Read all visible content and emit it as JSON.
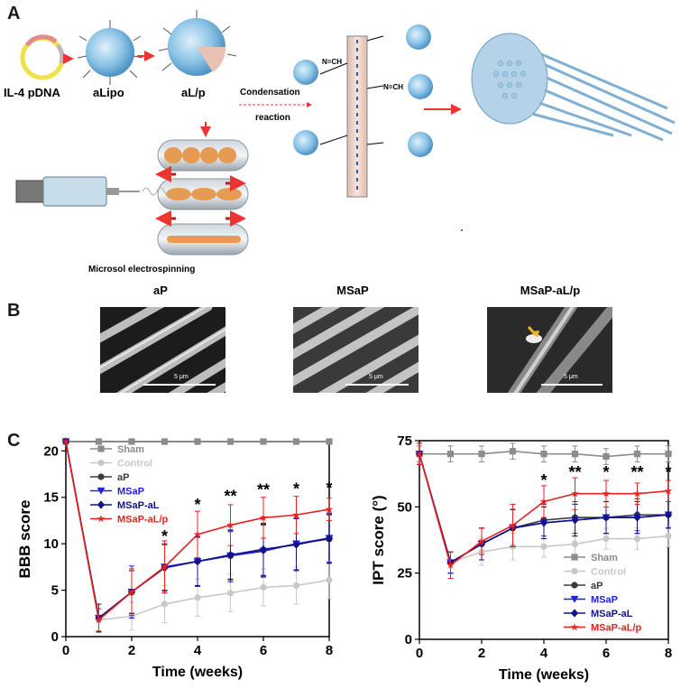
{
  "panelA": {
    "letter": "A",
    "labels": {
      "pdna": "IL-4 pDNA",
      "alipo": "aLipo",
      "alp": "aL/p",
      "condensation": "Condensation",
      "reaction": "reaction",
      "electrospinning": "Microsol electrospinning",
      "imine1": "N=CH",
      "imine2": "N=CH"
    }
  },
  "panelB": {
    "letter": "B",
    "images": [
      {
        "caption": "aP",
        "scale": "5 μm"
      },
      {
        "caption": "MSaP",
        "scale": "5 μm"
      },
      {
        "caption": "MSaP-aL/p",
        "scale": "5 μm"
      }
    ]
  },
  "panelC": {
    "letter": "C"
  },
  "colors": {
    "Sham": "#8c8c8c",
    "Control": "#c8c8c8",
    "aP": "#3a3a3a",
    "MSaP": "#1f1fe0",
    "MSaP-aL": "#12128a",
    "MSaP-aL/p": "#e8201e"
  },
  "chart_data": [
    {
      "type": "line",
      "xlabel": "Time (weeks)",
      "ylabel": "BBB score",
      "xlim": [
        0,
        8
      ],
      "ylim": [
        0,
        21
      ],
      "xticks": [
        0,
        2,
        4,
        6,
        8
      ],
      "yticks": [
        0,
        5,
        10,
        15,
        20
      ],
      "x": [
        0,
        1,
        2,
        3,
        4,
        5,
        6,
        7,
        8
      ],
      "legend_position": "top-left",
      "series": [
        {
          "name": "Sham",
          "values": [
            21,
            21,
            21,
            21,
            21,
            21,
            21,
            21,
            21
          ],
          "errors": [
            0,
            0,
            0,
            0,
            0,
            0,
            0,
            0,
            0
          ],
          "marker": "square"
        },
        {
          "name": "Control",
          "values": [
            21,
            1.8,
            2.2,
            3.5,
            4.2,
            4.7,
            5.3,
            5.5,
            6.1
          ],
          "errors": [
            0,
            1.2,
            1.5,
            2.0,
            2.0,
            2.0,
            2.0,
            2.0,
            2.0
          ],
          "marker": "circle"
        },
        {
          "name": "aP",
          "values": [
            21,
            2.0,
            4.8,
            7.5,
            8.1,
            8.7,
            9.3,
            10.0,
            10.5
          ],
          "errors": [
            0,
            1.5,
            2.3,
            2.5,
            2.6,
            2.6,
            2.8,
            2.8,
            2.6
          ],
          "marker": "circle"
        },
        {
          "name": "MSaP",
          "values": [
            21,
            2.0,
            4.8,
            7.5,
            8.1,
            8.7,
            9.2,
            10.0,
            10.6
          ],
          "errors": [
            0,
            1.5,
            2.8,
            2.8,
            2.7,
            2.8,
            2.8,
            2.8,
            2.6
          ],
          "marker": "triangle-down"
        },
        {
          "name": "MSaP-aL",
          "values": [
            21,
            2.0,
            4.8,
            7.4,
            8.1,
            8.8,
            9.4,
            9.9,
            10.6
          ],
          "errors": [
            0,
            1.5,
            2.3,
            2.5,
            2.6,
            2.6,
            2.8,
            2.8,
            2.7
          ],
          "marker": "diamond"
        },
        {
          "name": "MSaP-aL/p",
          "values": [
            21,
            1.8,
            4.8,
            7.5,
            11.0,
            12.0,
            12.8,
            13.1,
            13.7
          ],
          "errors": [
            0,
            1.2,
            2.5,
            2.8,
            2.5,
            2.2,
            2.2,
            2.0,
            1.2
          ],
          "marker": "star"
        }
      ],
      "annotations": [
        {
          "x": 3,
          "text": "*",
          "y": 10.8
        },
        {
          "x": 4,
          "text": "*",
          "y": 14.2
        },
        {
          "x": 5,
          "text": "**",
          "y": 15.1
        },
        {
          "x": 6,
          "text": "**",
          "y": 15.8
        },
        {
          "x": 7,
          "text": "*",
          "y": 15.9
        },
        {
          "x": 8,
          "text": "*",
          "y": 16.0
        }
      ]
    },
    {
      "type": "line",
      "xlabel": "Time (weeks)",
      "ylabel": "IPT score (°)",
      "xlim": [
        0,
        8
      ],
      "ylim": [
        0,
        75
      ],
      "xticks": [
        0,
        2,
        4,
        6,
        8
      ],
      "yticks": [
        0,
        25,
        50,
        75
      ],
      "x": [
        0,
        1,
        2,
        3,
        4,
        5,
        6,
        7,
        8
      ],
      "legend_position": "bottom-right",
      "series": [
        {
          "name": "Sham",
          "values": [
            70,
            70,
            70,
            71,
            70,
            70,
            69,
            70,
            70
          ],
          "errors": [
            3,
            3,
            3,
            3,
            3,
            3,
            3,
            3,
            3
          ],
          "marker": "square"
        },
        {
          "name": "Control",
          "values": [
            70,
            29,
            33,
            35,
            35,
            36,
            38,
            38,
            39
          ],
          "errors": [
            4,
            4,
            5,
            5,
            4,
            4,
            4,
            4,
            4
          ],
          "marker": "circle"
        },
        {
          "name": "aP",
          "values": [
            70,
            29,
            36,
            42,
            45,
            46,
            46,
            47,
            47
          ],
          "errors": [
            4,
            4,
            6,
            7,
            6,
            6,
            6,
            6,
            5
          ],
          "marker": "circle"
        },
        {
          "name": "MSaP",
          "values": [
            70,
            29,
            36,
            42,
            44,
            45,
            46,
            46,
            47
          ],
          "errors": [
            4,
            4,
            6,
            7,
            6,
            6,
            6,
            6,
            5
          ],
          "marker": "triangle-down"
        },
        {
          "name": "MSaP-aL",
          "values": [
            70,
            29,
            36,
            42,
            44,
            45,
            46,
            46,
            47
          ],
          "errors": [
            4,
            4,
            6,
            7,
            6,
            6,
            6,
            6,
            5
          ],
          "marker": "diamond"
        },
        {
          "name": "MSaP-aL/p",
          "values": [
            70,
            28,
            37,
            43,
            52,
            55,
            55,
            55,
            56
          ],
          "errors": [
            4,
            5,
            5,
            8,
            6,
            6,
            5,
            4,
            4
          ],
          "marker": "star"
        }
      ],
      "annotations": [
        {
          "x": 4,
          "text": "*",
          "y": 60
        },
        {
          "x": 5,
          "text": "**",
          "y": 63
        },
        {
          "x": 6,
          "text": "*",
          "y": 63
        },
        {
          "x": 7,
          "text": "**",
          "y": 63
        },
        {
          "x": 8,
          "text": "*",
          "y": 63
        }
      ]
    }
  ]
}
